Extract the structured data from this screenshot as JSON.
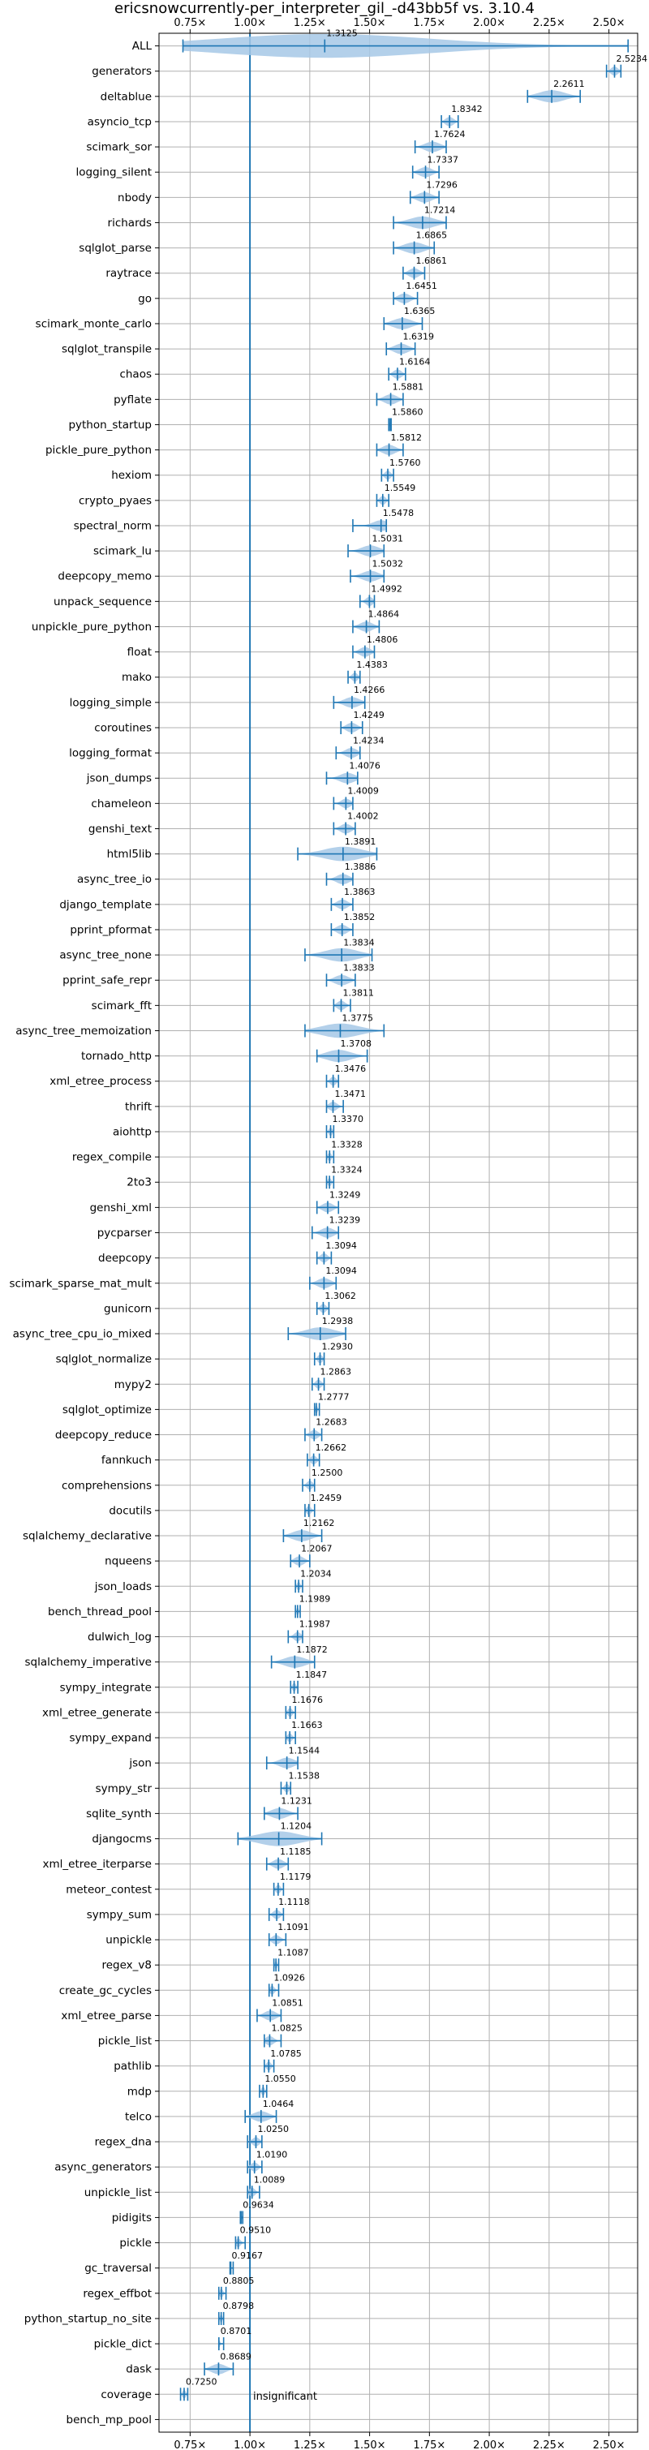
{
  "chart_data": {
    "type": "violin",
    "title": "ericsnowcurrently-per_interpreter_gil_-d43bb5f vs. 3.10.4",
    "xlim": [
      0.62,
      2.62
    ],
    "x_ticks": [
      0.75,
      1.0,
      1.25,
      1.5,
      1.75,
      2.0,
      2.25,
      2.5
    ],
    "x_tick_labels": [
      "0.75×",
      "1.00×",
      "1.25×",
      "1.50×",
      "1.75×",
      "2.00×",
      "2.25×",
      "2.50×"
    ],
    "reference_line": 1.0,
    "grid": true,
    "annotation": "insignificant",
    "color": "#1f77b4",
    "fill_color": "#a6c8e6",
    "categories": [
      "ALL",
      "generators",
      "deltablue",
      "asyncio_tcp",
      "scimark_sor",
      "logging_silent",
      "nbody",
      "richards",
      "sqlglot_parse",
      "raytrace",
      "go",
      "scimark_monte_carlo",
      "sqlglot_transpile",
      "chaos",
      "pyflate",
      "python_startup",
      "pickle_pure_python",
      "hexiom",
      "crypto_pyaes",
      "spectral_norm",
      "scimark_lu",
      "deepcopy_memo",
      "unpack_sequence",
      "unpickle_pure_python",
      "float",
      "mako",
      "logging_simple",
      "coroutines",
      "logging_format",
      "json_dumps",
      "chameleon",
      "genshi_text",
      "html5lib",
      "async_tree_io",
      "django_template",
      "pprint_pformat",
      "async_tree_none",
      "pprint_safe_repr",
      "scimark_fft",
      "async_tree_memoization",
      "tornado_http",
      "xml_etree_process",
      "thrift",
      "aiohttp",
      "regex_compile",
      "2to3",
      "genshi_xml",
      "pycparser",
      "deepcopy",
      "scimark_sparse_mat_mult",
      "gunicorn",
      "async_tree_cpu_io_mixed",
      "sqlglot_normalize",
      "mypy2",
      "sqlglot_optimize",
      "deepcopy_reduce",
      "fannkuch",
      "comprehensions",
      "docutils",
      "sqlalchemy_declarative",
      "nqueens",
      "json_loads",
      "bench_thread_pool",
      "dulwich_log",
      "sqlalchemy_imperative",
      "sympy_integrate",
      "xml_etree_generate",
      "sympy_expand",
      "json",
      "sympy_str",
      "sqlite_synth",
      "djangocms",
      "xml_etree_iterparse",
      "meteor_contest",
      "sympy_sum",
      "unpickle",
      "regex_v8",
      "create_gc_cycles",
      "xml_etree_parse",
      "pickle_list",
      "pathlib",
      "mdp",
      "telco",
      "regex_dna",
      "async_generators",
      "unpickle_list",
      "pidigits",
      "pickle",
      "gc_traversal",
      "regex_effbot",
      "python_startup_no_site",
      "pickle_dict",
      "dask",
      "coverage",
      "bench_mp_pool"
    ],
    "values": [
      1.3125,
      2.5234,
      2.2611,
      1.8342,
      1.7624,
      1.7337,
      1.7296,
      1.7214,
      1.6865,
      1.6861,
      1.6451,
      1.6365,
      1.6319,
      1.6164,
      1.5881,
      1.586,
      1.5812,
      1.576,
      1.5549,
      1.5478,
      1.5031,
      1.5032,
      1.4992,
      1.4864,
      1.4806,
      1.4383,
      1.4266,
      1.4249,
      1.4234,
      1.4076,
      1.4009,
      1.4002,
      1.3891,
      1.3886,
      1.3863,
      1.3852,
      1.3834,
      1.3833,
      1.3811,
      1.3775,
      1.3708,
      1.3476,
      1.3471,
      1.337,
      1.3328,
      1.3324,
      1.3249,
      1.3239,
      1.3094,
      1.3094,
      1.3062,
      1.2938,
      1.293,
      1.2863,
      1.2777,
      1.2683,
      1.2662,
      1.25,
      1.2459,
      1.2162,
      1.2067,
      1.2034,
      1.1989,
      1.1987,
      1.1872,
      1.1847,
      1.1676,
      1.1663,
      1.1544,
      1.1538,
      1.1231,
      1.1204,
      1.1185,
      1.1179,
      1.1118,
      1.1091,
      1.1087,
      1.0926,
      1.0851,
      1.0825,
      1.0785,
      1.055,
      1.0464,
      1.025,
      1.019,
      1.0089,
      0.9634,
      0.951,
      0.9167,
      0.8805,
      0.8798,
      0.8701,
      0.8689,
      0.725,
      null
    ],
    "value_labels": [
      "1.3125",
      "2.5234",
      "2.2611",
      "1.8342",
      "1.7624",
      "1.7337",
      "1.7296",
      "1.7214",
      "1.6865",
      "1.6861",
      "1.6451",
      "1.6365",
      "1.6319",
      "1.6164",
      "1.5881",
      "1.5860",
      "1.5812",
      "1.5760",
      "1.5549",
      "1.5478",
      "1.5031",
      "1.5032",
      "1.4992",
      "1.4864",
      "1.4806",
      "1.4383",
      "1.4266",
      "1.4249",
      "1.4234",
      "1.4076",
      "1.4009",
      "1.4002",
      "1.3891",
      "1.3886",
      "1.3863",
      "1.3852",
      "1.3834",
      "1.3833",
      "1.3811",
      "1.3775",
      "1.3708",
      "1.3476",
      "1.3471",
      "1.3370",
      "1.3328",
      "1.3324",
      "1.3249",
      "1.3239",
      "1.3094",
      "1.3094",
      "1.3062",
      "1.2938",
      "1.2930",
      "1.2863",
      "1.2777",
      "1.2683",
      "1.2662",
      "1.2500",
      "1.2459",
      "1.2162",
      "1.2067",
      "1.2034",
      "1.1989",
      "1.1987",
      "1.1872",
      "1.1847",
      "1.1676",
      "1.1663",
      "1.1544",
      "1.1538",
      "1.1231",
      "1.1204",
      "1.1185",
      "1.1179",
      "1.1118",
      "1.1091",
      "1.1087",
      "1.0926",
      "1.0851",
      "1.0825",
      "1.0785",
      "1.0550",
      "1.0464",
      "1.0250",
      "1.0190",
      "1.0089",
      "0.9634",
      "0.9510",
      "0.9167",
      "0.8805",
      "0.8798",
      "0.8701",
      "0.8689",
      "0.7250",
      ""
    ],
    "spread_low": [
      0.72,
      2.49,
      2.16,
      1.8,
      1.69,
      1.68,
      1.67,
      1.6,
      1.6,
      1.64,
      1.6,
      1.56,
      1.57,
      1.58,
      1.53,
      1.58,
      1.53,
      1.55,
      1.53,
      1.43,
      1.41,
      1.42,
      1.46,
      1.43,
      1.43,
      1.41,
      1.35,
      1.38,
      1.36,
      1.32,
      1.35,
      1.35,
      1.2,
      1.32,
      1.34,
      1.34,
      1.23,
      1.32,
      1.35,
      1.23,
      1.28,
      1.32,
      1.32,
      1.32,
      1.32,
      1.32,
      1.28,
      1.26,
      1.28,
      1.25,
      1.28,
      1.16,
      1.27,
      1.26,
      1.27,
      1.23,
      1.24,
      1.22,
      1.23,
      1.14,
      1.17,
      1.19,
      1.19,
      1.16,
      1.09,
      1.17,
      1.15,
      1.15,
      1.07,
      1.13,
      1.06,
      0.95,
      1.07,
      1.1,
      1.08,
      1.08,
      1.1,
      1.08,
      1.03,
      1.06,
      1.06,
      1.04,
      0.98,
      0.99,
      0.99,
      0.99,
      0.96,
      0.94,
      0.92,
      0.87,
      0.87,
      0.87,
      0.81,
      0.71,
      null
    ],
    "spread_high": [
      2.58,
      2.55,
      2.38,
      1.87,
      1.82,
      1.79,
      1.79,
      1.82,
      1.77,
      1.73,
      1.7,
      1.72,
      1.69,
      1.65,
      1.64,
      1.59,
      1.64,
      1.6,
      1.58,
      1.57,
      1.56,
      1.56,
      1.52,
      1.54,
      1.52,
      1.46,
      1.48,
      1.47,
      1.46,
      1.45,
      1.43,
      1.44,
      1.53,
      1.43,
      1.43,
      1.43,
      1.51,
      1.44,
      1.42,
      1.56,
      1.49,
      1.37,
      1.39,
      1.35,
      1.35,
      1.35,
      1.37,
      1.37,
      1.34,
      1.36,
      1.33,
      1.4,
      1.31,
      1.31,
      1.29,
      1.3,
      1.29,
      1.27,
      1.27,
      1.3,
      1.25,
      1.22,
      1.21,
      1.22,
      1.27,
      1.2,
      1.19,
      1.19,
      1.2,
      1.17,
      1.2,
      1.3,
      1.16,
      1.14,
      1.14,
      1.15,
      1.12,
      1.12,
      1.13,
      1.13,
      1.1,
      1.07,
      1.11,
      1.05,
      1.05,
      1.04,
      0.97,
      0.98,
      0.93,
      0.9,
      0.89,
      0.89,
      0.93,
      0.74,
      null
    ]
  }
}
